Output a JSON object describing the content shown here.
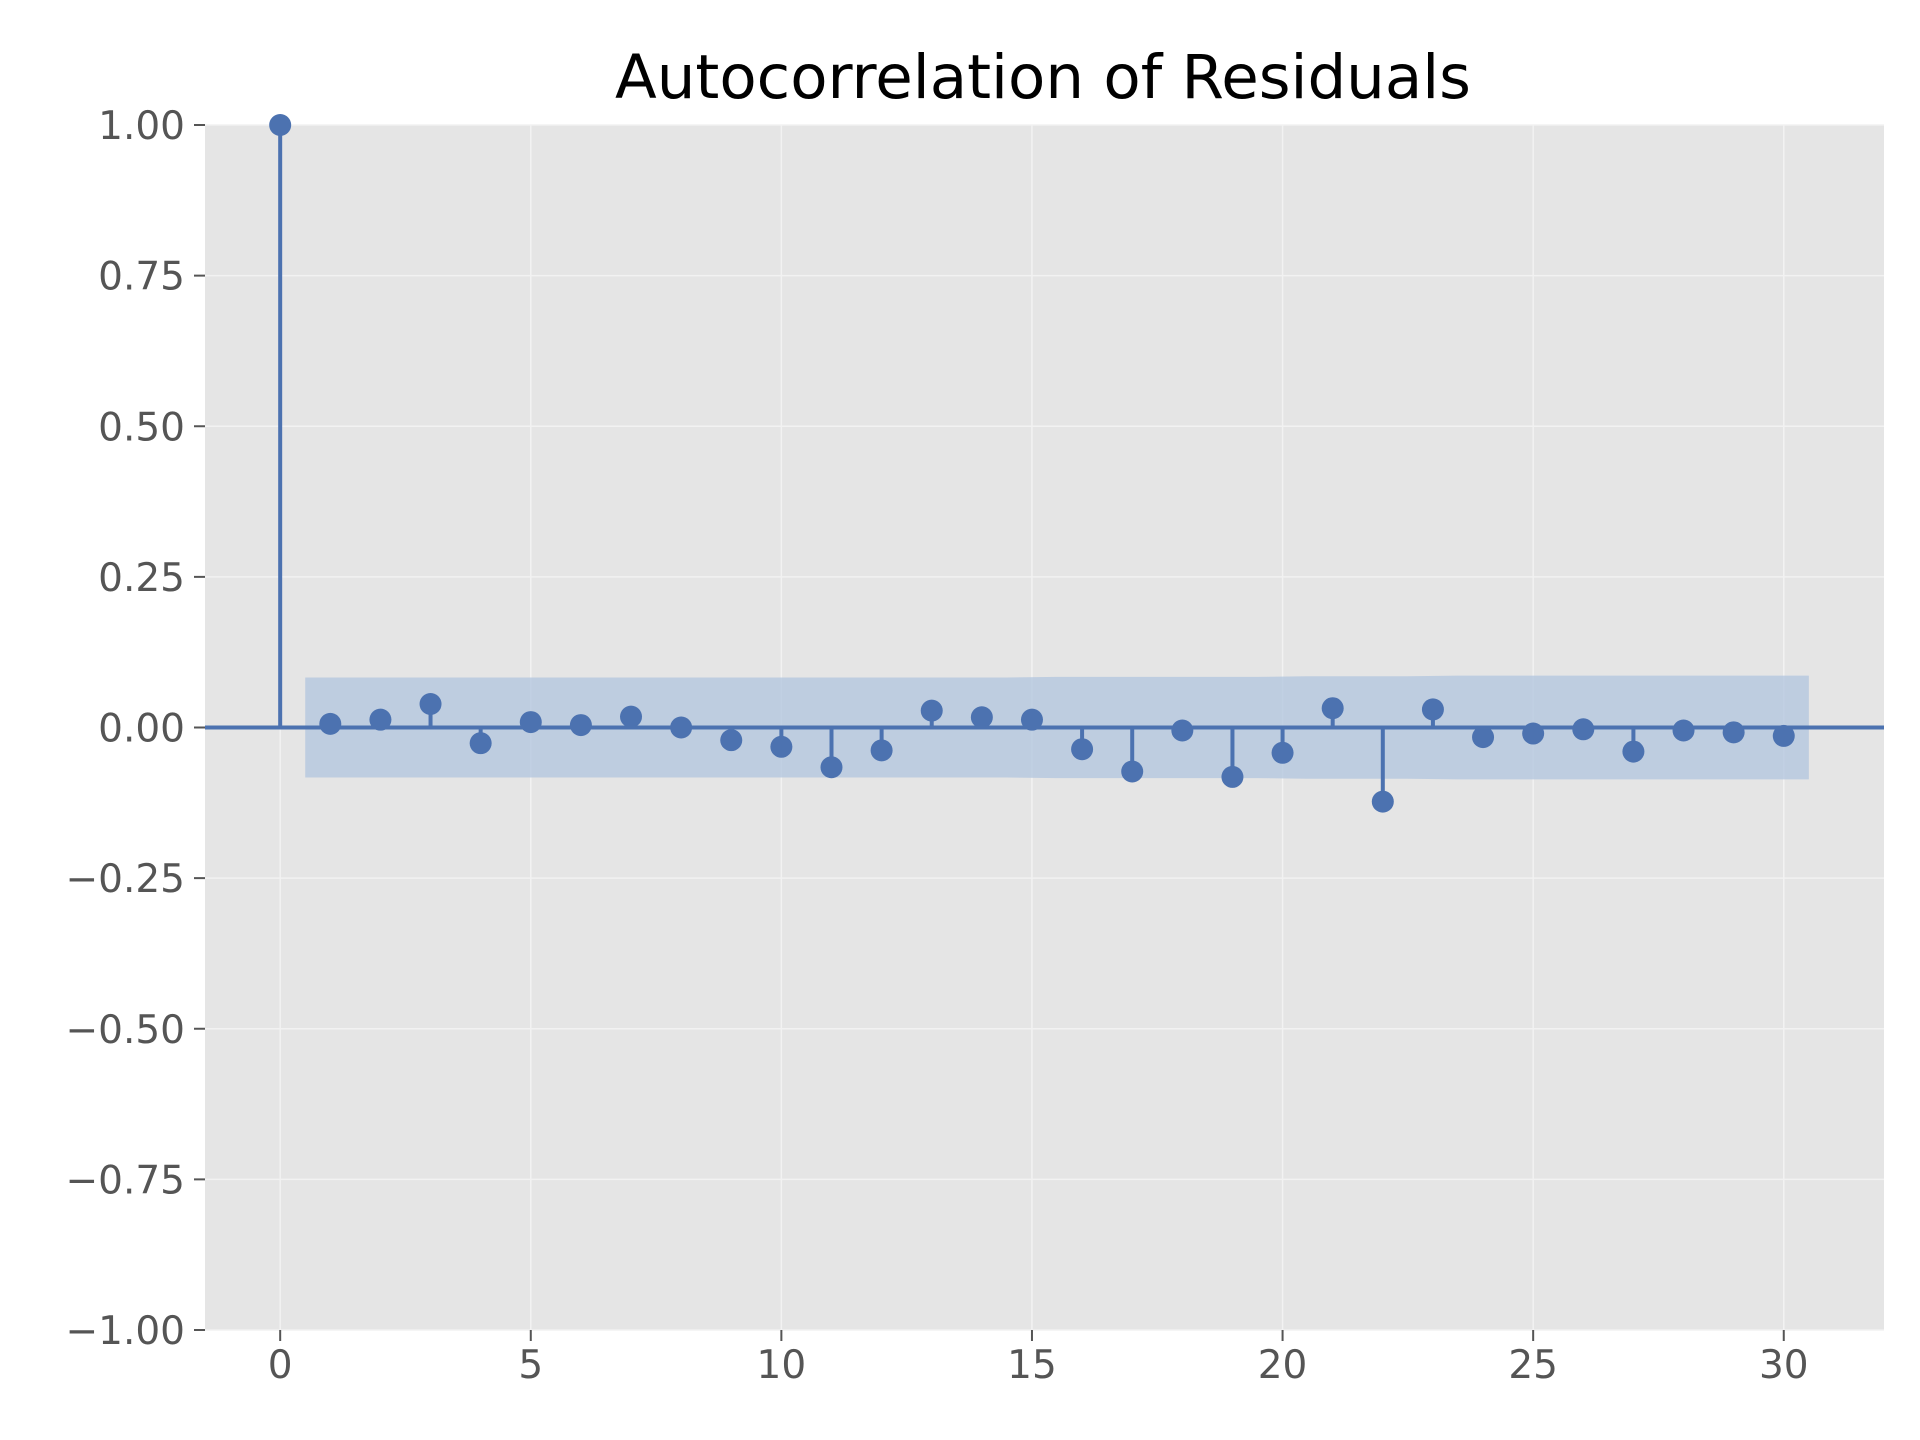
{
  "chart_data": {
    "type": "stem",
    "title": "Autocorrelation of Residuals",
    "xlabel": "",
    "ylabel": "",
    "xlim": [
      -1.5,
      32
    ],
    "ylim": [
      -1.0,
      1.0
    ],
    "x_ticks": [
      0,
      5,
      10,
      15,
      20,
      25,
      30
    ],
    "x_tick_labels": [
      "0",
      "5",
      "10",
      "15",
      "20",
      "25",
      "30"
    ],
    "y_ticks": [
      1.0,
      0.75,
      0.5,
      0.25,
      0.0,
      -0.25,
      -0.5,
      -0.75,
      -1.0
    ],
    "y_tick_labels": [
      "1.00",
      "0.75",
      "0.50",
      "0.25",
      "0.00",
      "−0.25",
      "−0.50",
      "−0.75",
      "−1.00"
    ],
    "grid": true,
    "lags": [
      0,
      1,
      2,
      3,
      4,
      5,
      6,
      7,
      8,
      9,
      10,
      11,
      12,
      13,
      14,
      15,
      16,
      17,
      18,
      19,
      20,
      21,
      22,
      23,
      24,
      25,
      26,
      27,
      28,
      29,
      30
    ],
    "values": [
      1.0,
      0.006,
      0.013,
      0.039,
      -0.026,
      0.009,
      0.004,
      0.018,
      0.0,
      -0.021,
      -0.032,
      -0.066,
      -0.038,
      0.028,
      0.017,
      0.013,
      -0.036,
      -0.073,
      -0.005,
      -0.082,
      -0.042,
      0.032,
      -0.123,
      0.03,
      -0.016,
      -0.01,
      -0.003,
      -0.04,
      -0.005,
      -0.008,
      -0.014
    ],
    "confidence_band": {
      "x_start": 0.5,
      "x_end": 30.5,
      "upper": [
        0.083,
        0.083,
        0.083,
        0.083,
        0.083,
        0.083,
        0.083,
        0.083,
        0.083,
        0.083,
        0.083,
        0.083,
        0.083,
        0.083,
        0.083,
        0.084,
        0.084,
        0.084,
        0.084,
        0.084,
        0.085,
        0.085,
        0.085,
        0.086,
        0.086,
        0.086,
        0.086,
        0.086,
        0.086,
        0.086,
        0.086
      ],
      "lower": [
        -0.083,
        -0.083,
        -0.083,
        -0.083,
        -0.083,
        -0.083,
        -0.083,
        -0.083,
        -0.083,
        -0.083,
        -0.083,
        -0.083,
        -0.083,
        -0.083,
        -0.083,
        -0.084,
        -0.084,
        -0.084,
        -0.084,
        -0.084,
        -0.085,
        -0.085,
        -0.085,
        -0.086,
        -0.086,
        -0.086,
        -0.086,
        -0.086,
        -0.086,
        -0.086,
        -0.086
      ]
    },
    "colors": {
      "series": "#4c72b0",
      "band": "#b0c4de",
      "plot_background": "#e5e5e5",
      "grid": "#f2f2f2",
      "tick_text": "#555555",
      "title_text": "#000000"
    }
  }
}
